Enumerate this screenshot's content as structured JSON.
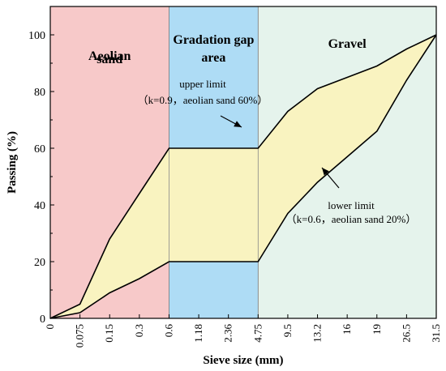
{
  "chart_data": {
    "type": "area",
    "xlabel": "Sieve size (mm)",
    "ylabel": "Passing (%)",
    "ylim": [
      0,
      110
    ],
    "y_ticks": [
      "0",
      "20",
      "40",
      "60",
      "80",
      "100"
    ],
    "x_tick_labels": [
      "0",
      "0.075",
      "0.15",
      "0.3",
      "0.6",
      "1.18",
      "2.36",
      "4.75",
      "9.5",
      "13.2",
      "16",
      "19",
      "26.5",
      "31.5"
    ],
    "regions": [
      {
        "label_lines": [
          "Aeolian",
          "sand"
        ],
        "from_tick": 0,
        "to_tick": 4,
        "color": "#f7c9c9"
      },
      {
        "label_lines": [
          "Gradation gap",
          "area"
        ],
        "from_tick": 4,
        "to_tick": 7,
        "color": "#aedcf5"
      },
      {
        "label_lines": [
          "Gravel"
        ],
        "from_tick": 7,
        "to_tick": 13,
        "color": "#e5f3ec"
      }
    ],
    "envelope_fill": "#f9f3c0",
    "series": [
      {
        "name": "upper limit",
        "annotation": [
          "upper limit",
          "（k=0.9，aeolian sand 60%）"
        ],
        "points": [
          {
            "x": "0",
            "y": 0
          },
          {
            "x": "0.075",
            "y": 5
          },
          {
            "x": "0.15",
            "y": 28
          },
          {
            "x": "0.3",
            "y": 44
          },
          {
            "x": "0.6",
            "y": 60
          },
          {
            "x": "4.75",
            "y": 60
          },
          {
            "x": "9.5",
            "y": 73
          },
          {
            "x": "13.2",
            "y": 81
          },
          {
            "x": "16",
            "y": 85
          },
          {
            "x": "19",
            "y": 89
          },
          {
            "x": "26.5",
            "y": 95
          },
          {
            "x": "31.5",
            "y": 100
          }
        ]
      },
      {
        "name": "lower limit",
        "annotation": [
          "lower limit",
          "（k=0.6，aeolian sand 20%）"
        ],
        "points": [
          {
            "x": "0",
            "y": 0
          },
          {
            "x": "0.075",
            "y": 2
          },
          {
            "x": "0.15",
            "y": 9
          },
          {
            "x": "0.3",
            "y": 14
          },
          {
            "x": "0.6",
            "y": 20
          },
          {
            "x": "4.75",
            "y": 20
          },
          {
            "x": "9.5",
            "y": 37
          },
          {
            "x": "13.2",
            "y": 48
          },
          {
            "x": "16",
            "y": 57
          },
          {
            "x": "19",
            "y": 66
          },
          {
            "x": "26.5",
            "y": 84
          },
          {
            "x": "31.5",
            "y": 100
          }
        ]
      }
    ]
  }
}
